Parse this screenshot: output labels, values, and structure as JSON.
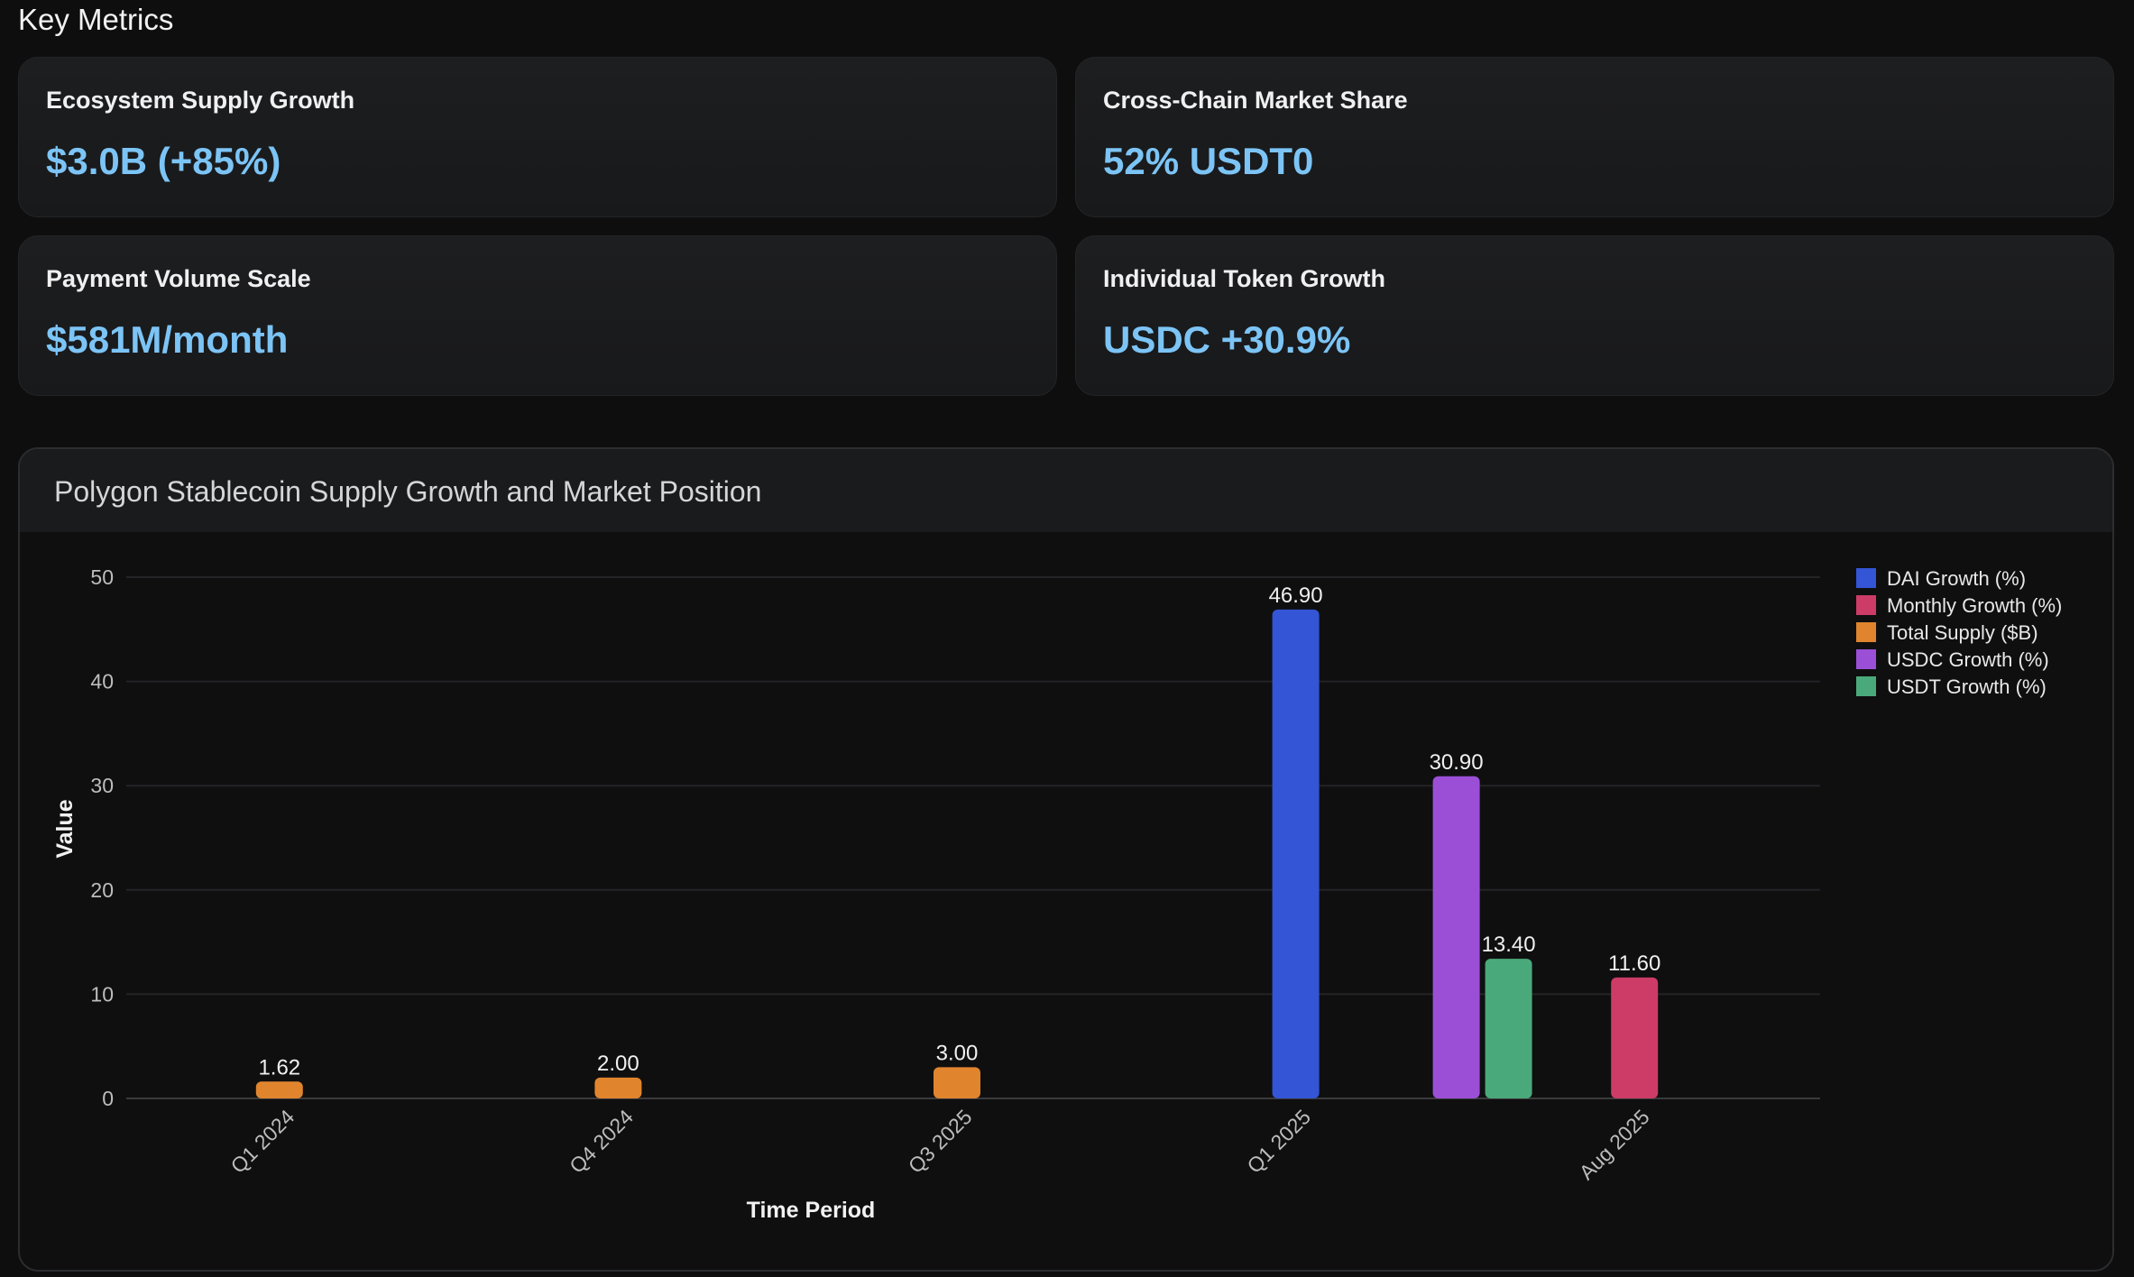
{
  "section_title": "Key Metrics",
  "metrics": [
    {
      "label": "Ecosystem Supply Growth",
      "value": "$3.0B (+85%)"
    },
    {
      "label": "Cross-Chain Market Share",
      "value": "52% USDT0"
    },
    {
      "label": "Payment Volume Scale",
      "value": "$581M/month"
    },
    {
      "label": "Individual Token Growth",
      "value": "USDC +30.9%"
    }
  ],
  "chart_data": {
    "type": "bar",
    "title": "Polygon Stablecoin Supply Growth and Market Position",
    "xlabel": "Time Period",
    "ylabel": "Value",
    "ylim": [
      0,
      50
    ],
    "yticks": [
      0,
      10,
      20,
      30,
      40,
      50
    ],
    "grid": true,
    "legend_position": "top-right",
    "categories": [
      "Q1 2024",
      "Q4 2024",
      "Q3 2025",
      "Q1 2025",
      "Aug 2025"
    ],
    "series": [
      {
        "name": "DAI Growth (%)",
        "color": "#3355d6",
        "values": [
          null,
          null,
          null,
          46.9,
          null
        ]
      },
      {
        "name": "Monthly Growth (%)",
        "color": "#cc3c66",
        "values": [
          null,
          null,
          null,
          null,
          11.6
        ]
      },
      {
        "name": "Total Supply ($B)",
        "color": "#e0852d",
        "values": [
          1.62,
          2.0,
          3.0,
          null,
          null
        ]
      },
      {
        "name": "USDC Growth (%)",
        "color": "#9b4fd6",
        "values": [
          null,
          null,
          null,
          30.9,
          null
        ]
      },
      {
        "name": "USDT Growth (%)",
        "color": "#4aa97a",
        "values": [
          null,
          null,
          null,
          13.4,
          null
        ]
      }
    ],
    "data_labels": [
      "1.62",
      "2.00",
      "3.00",
      "46.90",
      "30.90",
      "13.40",
      "11.60"
    ]
  }
}
